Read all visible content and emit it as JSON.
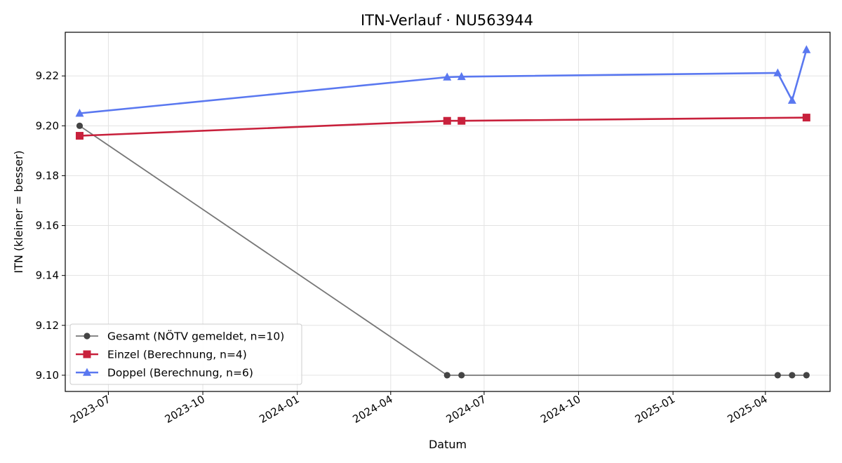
{
  "chart_data": {
    "type": "line",
    "title": "ITN-Verlauf · NU563944",
    "xlabel": "Datum",
    "ylabel": "ITN  (kleiner = besser)",
    "x_axis_type": "date",
    "xlim": [
      "2023-05-20",
      "2025-06-03"
    ],
    "ylim": [
      9.0935,
      9.2375
    ],
    "yticks": [
      9.1,
      9.12,
      9.14,
      9.16,
      9.18,
      9.2,
      9.22
    ],
    "xticks": [
      "2023-07",
      "2023-10",
      "2024-01",
      "2024-04",
      "2024-07",
      "2024-10",
      "2025-01",
      "2025-04"
    ],
    "grid": true,
    "legend_position": "lower-left",
    "series": [
      {
        "name": "Gesamt (NÖTV gemeldet, n=10)",
        "color": "#777777",
        "marker_color": "#444444",
        "marker": "circle",
        "line_width": 1.8,
        "points": [
          {
            "x": "2023-06-03",
            "y": 9.2
          },
          {
            "x": "2024-05-26",
            "y": 9.1
          },
          {
            "x": "2024-06-09",
            "y": 9.1
          },
          {
            "x": "2025-04-13",
            "y": 9.1
          },
          {
            "x": "2025-04-27",
            "y": 9.1
          },
          {
            "x": "2025-05-11",
            "y": 9.1
          }
        ]
      },
      {
        "name": "Einzel (Berechnung, n=4)",
        "color": "#c8213c",
        "marker_color": "#c8213c",
        "marker": "square",
        "line_width": 2.6,
        "points": [
          {
            "x": "2023-06-03",
            "y": 9.196
          },
          {
            "x": "2024-05-26",
            "y": 9.202
          },
          {
            "x": "2024-06-09",
            "y": 9.202
          },
          {
            "x": "2025-05-11",
            "y": 9.2033
          }
        ]
      },
      {
        "name": "Doppel (Berechnung, n=6)",
        "color": "#5a78f0",
        "marker_color": "#5a78f0",
        "marker": "triangle",
        "line_width": 2.6,
        "points": [
          {
            "x": "2023-06-03",
            "y": 9.205
          },
          {
            "x": "2024-05-26",
            "y": 9.2195
          },
          {
            "x": "2024-06-09",
            "y": 9.2197
          },
          {
            "x": "2025-04-13",
            "y": 9.2212
          },
          {
            "x": "2025-04-27",
            "y": 9.2102
          },
          {
            "x": "2025-05-11",
            "y": 9.2305
          }
        ]
      }
    ]
  }
}
